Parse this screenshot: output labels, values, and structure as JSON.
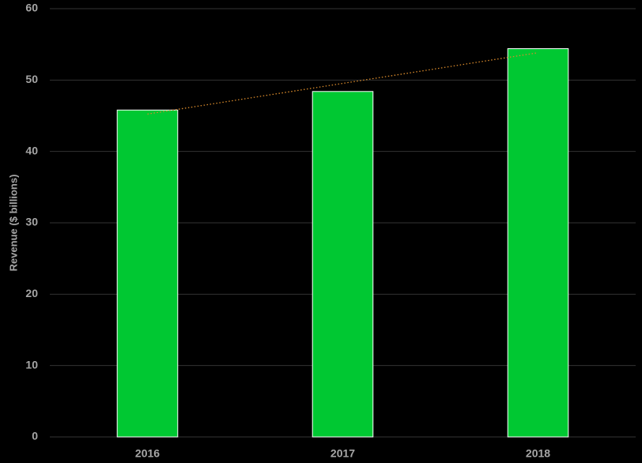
{
  "chart_data": {
    "type": "bar",
    "y_label": "Revenue ($ billions)",
    "categories": [
      "2016",
      "2017",
      "2018"
    ],
    "values": [
      45.8,
      48.4,
      54.4
    ],
    "color": "#00c832",
    "ylim": [
      0,
      60
    ],
    "yticks": [
      0,
      10,
      20,
      30,
      40,
      50,
      60
    ],
    "grid": true,
    "trendline": "linear",
    "trendline_color": "#d98a2b"
  }
}
